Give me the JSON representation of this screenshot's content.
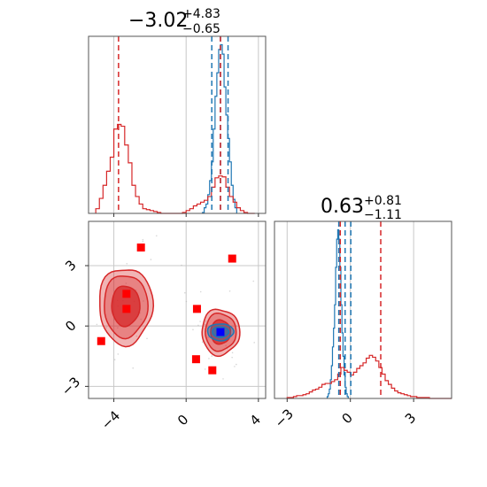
{
  "chart_data": {
    "type": "corner",
    "panels": {
      "hist_x": {
        "type": "histogram",
        "title": {
          "value": "−3.02",
          "plus": "+4.83",
          "minus": "−0.65"
        },
        "xlim": [
          -5.4,
          4.4
        ],
        "blue_series": {
          "color": "#1f77b4",
          "bin_start": 0.9,
          "bin_width": 0.1,
          "counts": [
            0.1,
            0.6,
            1.0,
            2.0,
            3.5,
            5.5,
            9.0,
            12.5,
            15.0,
            17.5,
            18.0,
            17.0,
            13.5,
            10.5,
            8.0,
            5.5,
            3.0,
            1.5,
            0.6
          ]
        },
        "red_series": {
          "color": "#d62728",
          "bin_start": -5.0,
          "bin_width": 0.2,
          "counts": [
            0.5,
            1.6,
            3.0,
            4.5,
            6.0,
            9.0,
            9.5,
            9.3,
            7.3,
            5.4,
            3.0,
            1.8,
            1.0,
            0.5,
            0.4,
            0.3,
            0.2,
            0.1,
            0.0,
            0.0,
            0.0,
            0.0,
            0.0,
            0.0,
            0.1,
            0.3,
            0.5,
            0.8,
            1.0,
            1.2,
            1.4,
            1.8,
            2.8,
            3.8,
            4.0,
            3.9,
            2.8,
            1.8,
            1.2,
            0.6,
            0.3,
            0.1,
            0,
            0
          ]
        },
        "blue_quantile_lines": [
          1.42,
          1.9,
          2.32
        ],
        "red_quantile_lines": [
          -3.74,
          1.9
        ],
        "xticks": [
          -4,
          0,
          4
        ]
      },
      "hist_y": {
        "type": "histogram",
        "title": {
          "value": "0.63",
          "plus": "+0.81",
          "minus": "−1.11"
        },
        "xlim": [
          -3.6,
          4.8
        ],
        "blue_series": {
          "color": "#1f77b4",
          "bin_start": -1.1,
          "bin_width": 0.05,
          "counts": [
            0.2,
            0.5,
            1.0,
            2.0,
            3.5,
            5.5,
            7.5,
            10.0,
            14.0,
            17.0,
            18.0,
            17.0,
            14.0,
            10.0,
            7.0,
            4.5,
            2.5,
            1.2,
            0.5,
            0.2
          ]
        },
        "red_series": {
          "color": "#d62728",
          "bin_start": -3.0,
          "bin_width": 0.15,
          "counts": [
            0.1,
            0.1,
            0.2,
            0.3,
            0.3,
            0.4,
            0.5,
            0.7,
            0.9,
            1.0,
            1.2,
            1.5,
            1.6,
            1.6,
            1.8,
            2.0,
            2.6,
            3.3,
            3.0,
            2.8,
            2.5,
            2.8,
            3.2,
            3.5,
            3.8,
            4.3,
            4.6,
            4.4,
            4.0,
            3.3,
            2.6,
            1.9,
            1.5,
            1.1,
            0.8,
            0.6,
            0.5,
            0.4,
            0.3,
            0.2,
            0.2,
            0.1,
            0.1,
            0.1,
            0.1,
            0.0,
            0.0,
            0.0,
            0.0,
            0.0,
            0.0,
            0.0
          ]
        },
        "blue_quantile_lines": [
          -0.55,
          -0.25,
          0.02
        ],
        "red_quantile_lines": [
          -0.48,
          1.44
        ],
        "xticks": [
          -3,
          0,
          3
        ],
        "xtick_labels": [
          "−3",
          "0",
          "3"
        ]
      },
      "scatter_2d": {
        "type": "contour",
        "xlim": [
          -5.4,
          4.4
        ],
        "ylim": [
          -3.6,
          5.2
        ],
        "xticks": [
          -4,
          0,
          4
        ],
        "yticks": [
          -3,
          0,
          3
        ],
        "xtick_labels": [
          "−4",
          "0",
          "4"
        ],
        "ytick_labels": [
          "−3",
          "0",
          "3"
        ],
        "red_blob_left": {
          "cx": -3.35,
          "cy": 1.0,
          "sx": 0.78,
          "sy": 1.0
        },
        "red_blob_right": {
          "cx": 1.9,
          "cy": -0.3,
          "sx": 0.55,
          "sy": 0.6
        },
        "blue_blob": {
          "cx": 1.9,
          "cy": -0.3,
          "sx": 0.38,
          "sy": 0.22
        },
        "red_squares": [
          [
            -2.5,
            3.9
          ],
          [
            -3.3,
            1.6
          ],
          [
            -3.3,
            0.85
          ],
          [
            -4.7,
            -0.75
          ],
          [
            0.6,
            0.85
          ],
          [
            2.55,
            3.35
          ],
          [
            0.55,
            -1.65
          ],
          [
            1.45,
            -2.2
          ]
        ],
        "blue_square": [
          1.9,
          -0.3
        ]
      }
    },
    "grid": true,
    "colors": {
      "blue": "#1f77b4",
      "red": "#d62728",
      "marker_red": "#ff0000",
      "marker_blue": "#0000ff"
    }
  }
}
